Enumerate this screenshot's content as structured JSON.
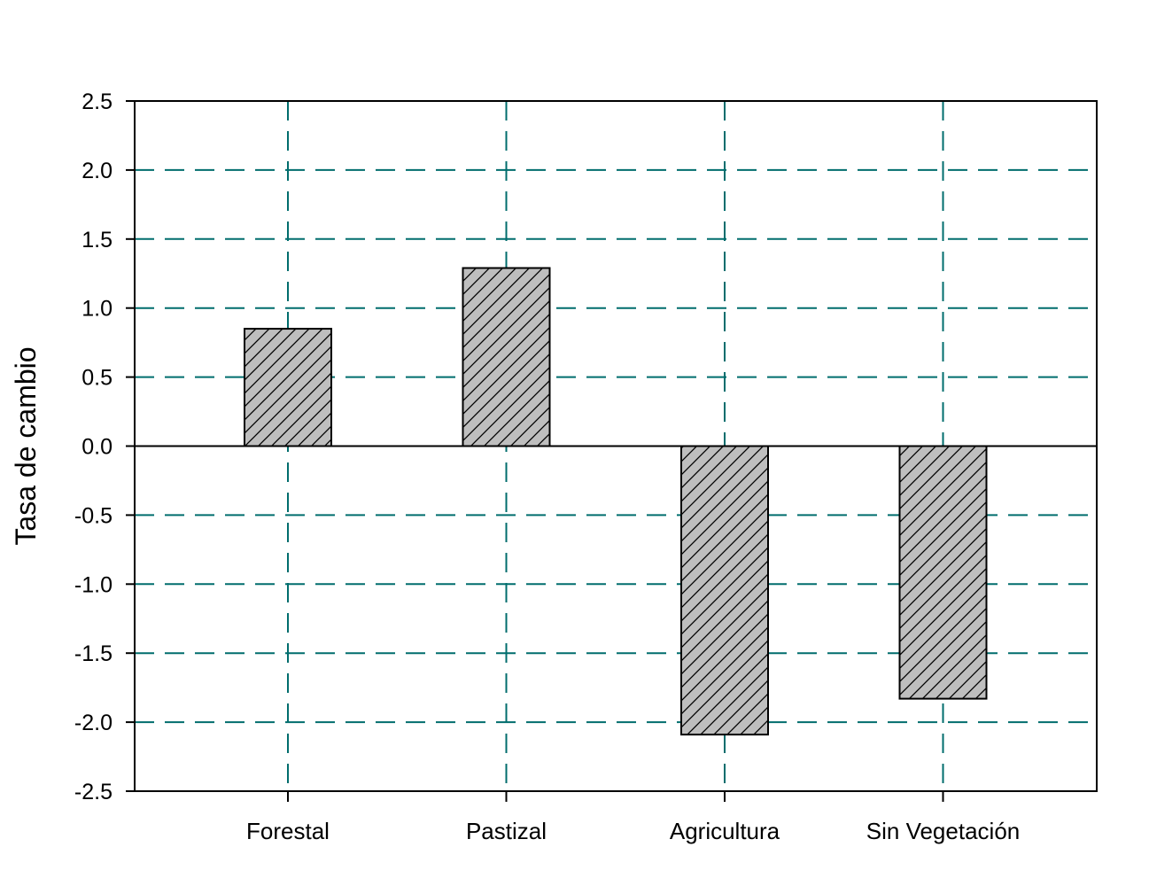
{
  "chart_data": {
    "type": "bar",
    "title": "",
    "xlabel": "",
    "ylabel": "Tasa de cambio",
    "categories": [
      "Forestal",
      "Pastizal",
      "Agricultura",
      "Sin Vegetación"
    ],
    "values": [
      0.85,
      1.29,
      -2.09,
      -1.83
    ],
    "ylim": [
      -2.5,
      2.5
    ],
    "yticks": [
      2.5,
      2.0,
      1.5,
      1.0,
      0.5,
      0.0,
      -0.5,
      -1.0,
      -1.5,
      -2.0,
      -2.5
    ],
    "ytick_labels": [
      "2.5",
      "2.0",
      "1.5",
      "1.0",
      "0.5",
      "0.0",
      "-0.5",
      "-1.0",
      "-1.5",
      "-2.0",
      "-2.5"
    ],
    "grid": true,
    "legend": "none",
    "bar_pattern": "diagonal-hatch",
    "colors": {
      "bar_fill": "#bebebe",
      "bar_stroke": "#000000",
      "hatch": "#000000",
      "grid": "#006d6d",
      "axis": "#000000"
    }
  }
}
